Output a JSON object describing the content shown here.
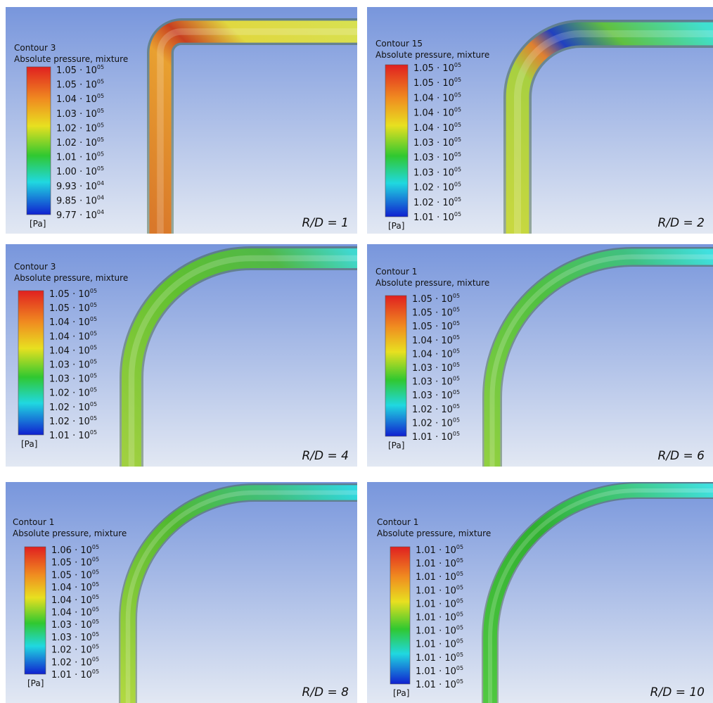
{
  "panels": [
    {
      "contour": "Contour 3",
      "variable": "Absolute pressure, mixture",
      "unit": "[Pa]",
      "caption": "R/D = 1",
      "legend": [
        {
          "mantissa": "1.05 · 10",
          "exponent": "05"
        },
        {
          "mantissa": "1.05 · 10",
          "exponent": "05"
        },
        {
          "mantissa": "1.04 · 10",
          "exponent": "05"
        },
        {
          "mantissa": "1.03 · 10",
          "exponent": "05"
        },
        {
          "mantissa": "1.02 · 10",
          "exponent": "05"
        },
        {
          "mantissa": "1.02 · 10",
          "exponent": "05"
        },
        {
          "mantissa": "1.01 · 10",
          "exponent": "05"
        },
        {
          "mantissa": "1.00 · 10",
          "exponent": "05"
        },
        {
          "mantissa": "9.93 · 10",
          "exponent": "04"
        },
        {
          "mantissa": "9.85 · 10",
          "exponent": "04"
        },
        {
          "mantissa": "9.77 · 10",
          "exponent": "04"
        }
      ]
    },
    {
      "contour": "Contour 15",
      "variable": "Absolute pressure, mixture",
      "unit": "[Pa]",
      "caption": "R/D = 2",
      "legend": [
        {
          "mantissa": "1.05 · 10",
          "exponent": "05"
        },
        {
          "mantissa": "1.05 · 10",
          "exponent": "05"
        },
        {
          "mantissa": "1.04 · 10",
          "exponent": "05"
        },
        {
          "mantissa": "1.04 · 10",
          "exponent": "05"
        },
        {
          "mantissa": "1.04 · 10",
          "exponent": "05"
        },
        {
          "mantissa": "1.03 · 10",
          "exponent": "05"
        },
        {
          "mantissa": "1.03 · 10",
          "exponent": "05"
        },
        {
          "mantissa": "1.03 · 10",
          "exponent": "05"
        },
        {
          "mantissa": "1.02 · 10",
          "exponent": "05"
        },
        {
          "mantissa": "1.02 · 10",
          "exponent": "05"
        },
        {
          "mantissa": "1.01 · 10",
          "exponent": "05"
        }
      ]
    },
    {
      "contour": "Contour 3",
      "variable": "Absolute pressure, mixture",
      "unit": "[Pa]",
      "caption": "R/D = 4",
      "legend": [
        {
          "mantissa": "1.05 · 10",
          "exponent": "05"
        },
        {
          "mantissa": "1.05 · 10",
          "exponent": "05"
        },
        {
          "mantissa": "1.04 · 10",
          "exponent": "05"
        },
        {
          "mantissa": "1.04 · 10",
          "exponent": "05"
        },
        {
          "mantissa": "1.04 · 10",
          "exponent": "05"
        },
        {
          "mantissa": "1.03 · 10",
          "exponent": "05"
        },
        {
          "mantissa": "1.03 · 10",
          "exponent": "05"
        },
        {
          "mantissa": "1.02 · 10",
          "exponent": "05"
        },
        {
          "mantissa": "1.02 · 10",
          "exponent": "05"
        },
        {
          "mantissa": "1.02 · 10",
          "exponent": "05"
        },
        {
          "mantissa": "1.01 · 10",
          "exponent": "05"
        }
      ]
    },
    {
      "contour": "Contour 1",
      "variable": "Absolute pressure, mixture",
      "unit": "[Pa]",
      "caption": "R/D = 6",
      "legend": [
        {
          "mantissa": "1.05 · 10",
          "exponent": "05"
        },
        {
          "mantissa": "1.05 · 10",
          "exponent": "05"
        },
        {
          "mantissa": "1.05 · 10",
          "exponent": "05"
        },
        {
          "mantissa": "1.04 · 10",
          "exponent": "05"
        },
        {
          "mantissa": "1.04 · 10",
          "exponent": "05"
        },
        {
          "mantissa": "1.03 · 10",
          "exponent": "05"
        },
        {
          "mantissa": "1.03 · 10",
          "exponent": "05"
        },
        {
          "mantissa": "1.03 · 10",
          "exponent": "05"
        },
        {
          "mantissa": "1.02 · 10",
          "exponent": "05"
        },
        {
          "mantissa": "1.02 · 10",
          "exponent": "05"
        },
        {
          "mantissa": "1.01 · 10",
          "exponent": "05"
        }
      ]
    },
    {
      "contour": "Contour 1",
      "variable": "Absolute pressure, mixture",
      "unit": "[Pa]",
      "caption": "R/D = 8",
      "legend": [
        {
          "mantissa": "1.06 · 10",
          "exponent": "05"
        },
        {
          "mantissa": "1.05 · 10",
          "exponent": "05"
        },
        {
          "mantissa": "1.05 · 10",
          "exponent": "05"
        },
        {
          "mantissa": "1.04 · 10",
          "exponent": "05"
        },
        {
          "mantissa": "1.04 · 10",
          "exponent": "05"
        },
        {
          "mantissa": "1.04 · 10",
          "exponent": "05"
        },
        {
          "mantissa": "1.03 · 10",
          "exponent": "05"
        },
        {
          "mantissa": "1.03 · 10",
          "exponent": "05"
        },
        {
          "mantissa": "1.02 · 10",
          "exponent": "05"
        },
        {
          "mantissa": "1.02 · 10",
          "exponent": "05"
        },
        {
          "mantissa": "1.01 · 10",
          "exponent": "05"
        }
      ]
    },
    {
      "contour": "Contour 1",
      "variable": "Absolute pressure, mixture",
      "unit": "[Pa]",
      "caption": "R/D = 10",
      "legend": [
        {
          "mantissa": "1.01 · 10",
          "exponent": "05"
        },
        {
          "mantissa": "1.01 · 10",
          "exponent": "05"
        },
        {
          "mantissa": "1.01 · 10",
          "exponent": "05"
        },
        {
          "mantissa": "1.01 · 10",
          "exponent": "05"
        },
        {
          "mantissa": "1.01 · 10",
          "exponent": "05"
        },
        {
          "mantissa": "1.01 · 10",
          "exponent": "05"
        },
        {
          "mantissa": "1.01 · 10",
          "exponent": "05"
        },
        {
          "mantissa": "1.01 · 10",
          "exponent": "05"
        },
        {
          "mantissa": "1.01 · 10",
          "exponent": "05"
        },
        {
          "mantissa": "1.01 · 10",
          "exponent": "05"
        },
        {
          "mantissa": "1.01 · 10",
          "exponent": "05"
        }
      ]
    }
  ]
}
